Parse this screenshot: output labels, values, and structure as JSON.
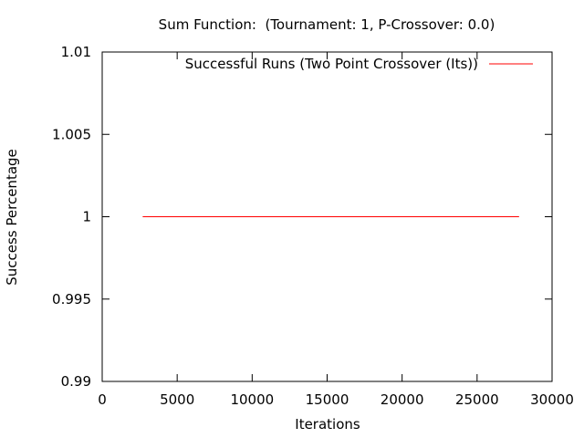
{
  "chart_data": {
    "type": "line",
    "title": "Sum Function:  (Tournament: 1, P-Crossover: 0.0)",
    "xlabel": "Iterations",
    "ylabel": "Success Percentage",
    "xlim": [
      0,
      30000
    ],
    "ylim": [
      0.99,
      1.01
    ],
    "xticks": [
      "0",
      "5000",
      "10000",
      "15000",
      "20000",
      "25000",
      "30000"
    ],
    "xtick_values": [
      0,
      5000,
      10000,
      15000,
      20000,
      25000,
      30000
    ],
    "yticks": [
      "0.99",
      "0.995",
      "1",
      "1.005",
      "1.01"
    ],
    "ytick_values": [
      0.99,
      0.995,
      1,
      1.005,
      1.01
    ],
    "grid": false,
    "legend_position": "top-right",
    "series": [
      {
        "name": "Successful Runs (Two Point Crossover (Its))",
        "color": "#ff0000",
        "x": [
          2700,
          27800
        ],
        "y": [
          1,
          1
        ]
      }
    ]
  }
}
